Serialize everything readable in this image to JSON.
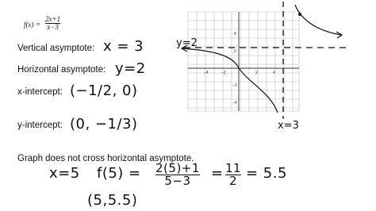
{
  "header": {
    "lhs": "f(x) =",
    "numerator": "2x+1",
    "denominator": "x−3"
  },
  "items": [
    {
      "label": "Vertical asymptote:",
      "answer": "x = 3"
    },
    {
      "label": "Horizontal asymptote:",
      "answer": "y=2"
    },
    {
      "label": "x-intercept:",
      "answer": "(−1/2, 0)"
    },
    {
      "label": "y-intercept:",
      "answer": "(0, −1/3)"
    }
  ],
  "graph": {
    "x_labels": [
      "−4",
      "−2",
      "2",
      "4"
    ],
    "y_labels": [
      "4",
      "2",
      "−2",
      "−4"
    ],
    "asymptote_labels": [
      "y=2",
      "x=3"
    ]
  },
  "note": "Graph does not cross horizontal asymptote.",
  "work": {
    "x": "x=5",
    "f": "f(5) =",
    "num": "2(5)+1",
    "den": "5−3",
    "eq": "=",
    "num2": "11",
    "den2": "2",
    "result": "= 5.5",
    "point": "(5,5.5)"
  }
}
